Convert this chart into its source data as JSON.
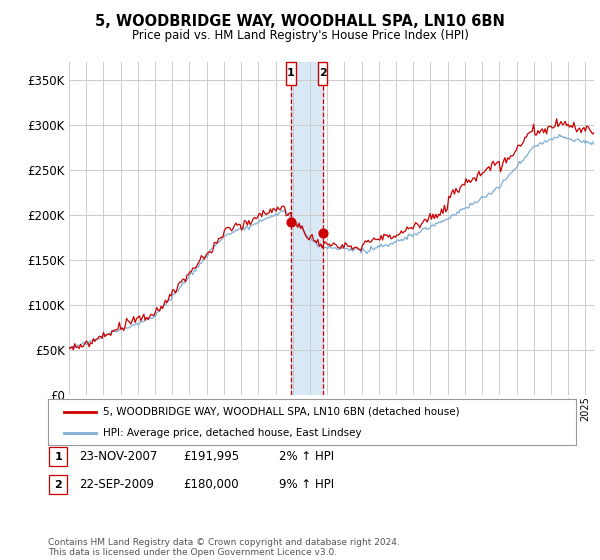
{
  "title": "5, WOODBRIDGE WAY, WOODHALL SPA, LN10 6BN",
  "subtitle": "Price paid vs. HM Land Registry's House Price Index (HPI)",
  "ylim": [
    0,
    370000
  ],
  "yticks": [
    0,
    50000,
    100000,
    150000,
    200000,
    250000,
    300000,
    350000
  ],
  "ytick_labels": [
    "£0",
    "£50K",
    "£100K",
    "£150K",
    "£200K",
    "£250K",
    "£300K",
    "£350K"
  ],
  "xlim_start": 1995,
  "xlim_end": 2025.5,
  "background_color": "#ffffff",
  "grid_color": "#cccccc",
  "sale1": {
    "date": 2007.9,
    "price": 191995,
    "label": "1",
    "display_date": "23-NOV-2007",
    "display_price": "£191,995",
    "hpi_diff": "2% ↑ HPI"
  },
  "sale2": {
    "date": 2009.73,
    "price": 180000,
    "label": "2",
    "display_date": "22-SEP-2009",
    "display_price": "£180,000",
    "hpi_diff": "9% ↑ HPI"
  },
  "legend_line1": "5, WOODBRIDGE WAY, WOODHALL SPA, LN10 6BN (detached house)",
  "legend_line2": "HPI: Average price, detached house, East Lindsey",
  "footer": "Contains HM Land Registry data © Crown copyright and database right 2024.\nThis data is licensed under the Open Government Licence v3.0.",
  "line_color_red": "#cc0000",
  "line_color_blue": "#7fafd4",
  "sale_box_border": "#cc0000",
  "sale_span_color": "#d8e8f5"
}
